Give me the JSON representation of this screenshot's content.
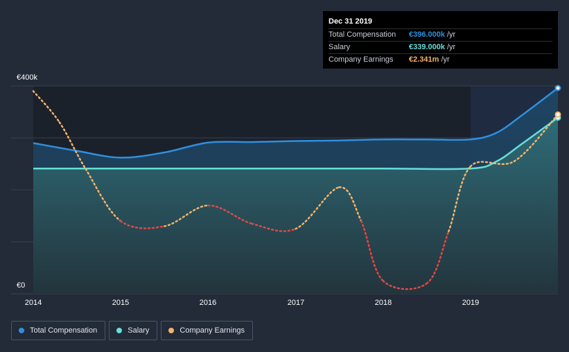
{
  "tooltip": {
    "date": "Dec 31 2019",
    "rows": [
      {
        "name": "Total Compensation",
        "value": "€396.000k",
        "unit": "/yr"
      },
      {
        "name": "Salary",
        "value": "€339.000k",
        "unit": "/yr"
      },
      {
        "name": "Company Earnings",
        "value": "€2.341m",
        "unit": "/yr"
      }
    ]
  },
  "legend": [
    {
      "label": "Total Compensation"
    },
    {
      "label": "Salary"
    },
    {
      "label": "Company Earnings"
    }
  ],
  "colors": {
    "total": "#2f8fe0",
    "salary": "#66e0d8",
    "earnings_pos": "#f4b36a",
    "earnings_neg": "#e04848",
    "background": "#232b38"
  },
  "chart_data": {
    "type": "line",
    "y_labels": [
      "€400k",
      "€0"
    ],
    "ylim": [
      0,
      400
    ],
    "xlim": [
      2014,
      2020
    ],
    "x_ticks": [
      "2014",
      "2015",
      "2016",
      "2017",
      "2018",
      "2019"
    ],
    "grid": true,
    "legend_position": "bottom-left",
    "series": [
      {
        "name": "Total Compensation",
        "x": [
          2014,
          2014.5,
          2015,
          2015.5,
          2016,
          2016.5,
          2017,
          2017.5,
          2018,
          2018.5,
          2019,
          2019.3,
          2019.6,
          2020
        ],
        "values": [
          290,
          275,
          262,
          272,
          291,
          292,
          294,
          295,
          297,
          297,
          297,
          310,
          345,
          396
        ]
      },
      {
        "name": "Salary",
        "x": [
          2014,
          2015,
          2016,
          2017,
          2018,
          2019,
          2019.3,
          2019.6,
          2020
        ],
        "values": [
          241,
          241,
          241,
          241,
          241,
          241,
          255,
          290,
          339
        ]
      },
      {
        "name": "Company Earnings",
        "x": [
          2014,
          2014.3,
          2014.6,
          2015,
          2015.5,
          2016,
          2016.5,
          2017,
          2017.5,
          2017.75,
          2018,
          2018.5,
          2018.75,
          2019,
          2019.5,
          2020
        ],
        "values": [
          390,
          330,
          240,
          140,
          130,
          170,
          135,
          125,
          205,
          140,
          25,
          20,
          120,
          245,
          255,
          345
        ]
      }
    ]
  }
}
